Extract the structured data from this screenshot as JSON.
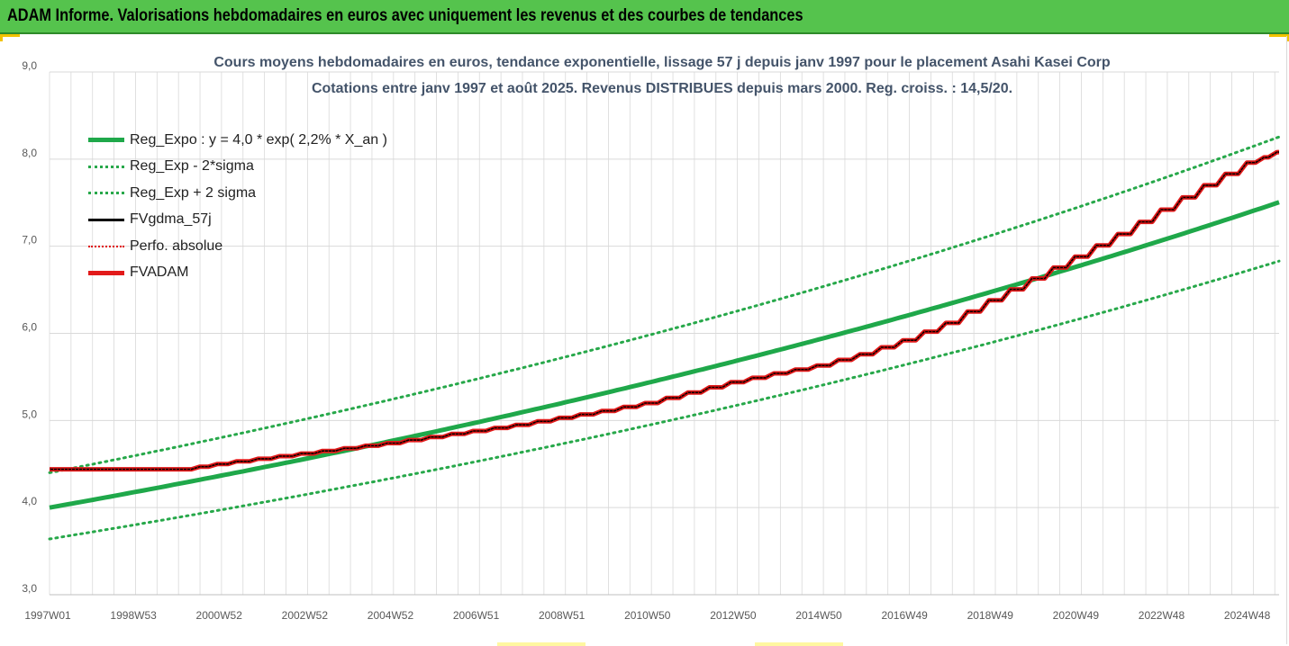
{
  "banner": {
    "title": "ADAM Informe. Valorisations hebdomadaires en euros avec uniquement les revenus et des courbes de tendances"
  },
  "colors": {
    "banner_bg": "#55c34d",
    "trend": "#1fa84a",
    "band": "#27a84a",
    "fvgdma": "#000000",
    "perfo": "#e00000",
    "fvadam": "#e21a1a",
    "grid": "#d9d9d9",
    "axis_text": "#595959",
    "title_text": "#44546a"
  },
  "chart_data": {
    "type": "line",
    "title": "Cours moyens hebdomadaires en euros, tendance exponentielle, lissage 57 j depuis janv 1997 pour le placement Asahi Kasei Corp",
    "subtitle": "Cotations entre janv 1997 et août 2025. Revenus DISTRIBUES depuis mars 2000. Reg. croiss. : 14,5/20.",
    "xlabel": "",
    "ylabel": "",
    "ylim": [
      3.0,
      9.0
    ],
    "yticks": [
      "3,0",
      "4,0",
      "5,0",
      "6,0",
      "7,0",
      "8,0",
      "9,0"
    ],
    "xticks": [
      "1997W01",
      "1998W53",
      "2000W52",
      "2002W52",
      "2004W52",
      "2006W51",
      "2008W51",
      "2010W50",
      "2012W50",
      "2014W50",
      "2016W49",
      "2018W49",
      "2020W49",
      "2022W48",
      "2024W48"
    ],
    "x_range_years": [
      1997.0,
      2025.6
    ],
    "grid": true,
    "legend_position": "top-left",
    "trend": {
      "name": "Reg_Expo : y = 4,0 * exp( 2,2% *  X_an )",
      "a": 4.0,
      "rate": 0.022,
      "lower_factor": 0.91,
      "upper_factor": 1.1
    },
    "series": [
      {
        "name": "Reg_Expo : y = 4,0 * exp( 2,2% *  X_an )",
        "style": "solid-thick-green",
        "x": [
          1997.0,
          2001.0,
          2005.0,
          2009.0,
          2013.0,
          2017.0,
          2021.0,
          2025.6
        ],
        "values": [
          4.0,
          4.37,
          4.76,
          5.2,
          5.67,
          6.19,
          6.75,
          7.49
        ]
      },
      {
        "name": "Reg_Exp - 2*sigma",
        "style": "dotted-green",
        "x": [
          1997.0,
          2001.0,
          2005.0,
          2009.0,
          2013.0,
          2017.0,
          2021.0,
          2025.6
        ],
        "values": [
          3.64,
          3.97,
          4.33,
          4.73,
          5.16,
          5.63,
          6.14,
          6.81
        ]
      },
      {
        "name": "Reg_Exp + 2 sigma",
        "style": "dotted-green",
        "x": [
          1997.0,
          2001.0,
          2005.0,
          2009.0,
          2013.0,
          2017.0,
          2021.0,
          2025.6
        ],
        "values": [
          4.4,
          4.8,
          5.24,
          5.72,
          6.24,
          6.81,
          7.43,
          8.24
        ]
      },
      {
        "name": "FVgdma_57j",
        "style": "solid-black",
        "x": [
          1997.0,
          2000.2,
          2001.0,
          2002.0,
          2003.0,
          2004.0,
          2005.0,
          2006.0,
          2007.0,
          2008.0,
          2009.0,
          2010.0,
          2011.0,
          2012.0,
          2013.0,
          2014.0,
          2015.0,
          2016.0,
          2017.0,
          2018.0,
          2019.0,
          2020.0,
          2021.0,
          2022.0,
          2023.0,
          2024.0,
          2025.0,
          2025.6
        ],
        "values": [
          4.44,
          4.44,
          4.5,
          4.56,
          4.62,
          4.68,
          4.74,
          4.81,
          4.88,
          4.95,
          5.03,
          5.11,
          5.2,
          5.32,
          5.44,
          5.54,
          5.63,
          5.76,
          5.92,
          6.12,
          6.38,
          6.63,
          6.88,
          7.14,
          7.42,
          7.7,
          7.96,
          8.08
        ]
      },
      {
        "name": "Perfo. absolue",
        "style": "dotted-red",
        "x": [
          1997.0,
          2000.2,
          2001.0,
          2002.0,
          2003.0,
          2004.0,
          2005.0,
          2006.0,
          2007.0,
          2008.0,
          2009.0,
          2010.0,
          2011.0,
          2012.0,
          2013.0,
          2014.0,
          2015.0,
          2016.0,
          2017.0,
          2018.0,
          2019.0,
          2020.0,
          2021.0,
          2022.0,
          2023.0,
          2024.0,
          2025.0,
          2025.6
        ],
        "values": [
          4.44,
          4.44,
          4.5,
          4.56,
          4.62,
          4.68,
          4.74,
          4.81,
          4.88,
          4.95,
          5.03,
          5.11,
          5.2,
          5.32,
          5.44,
          5.54,
          5.63,
          5.76,
          5.92,
          6.12,
          6.38,
          6.63,
          6.88,
          7.14,
          7.42,
          7.7,
          7.96,
          8.08
        ]
      },
      {
        "name": "FVADAM",
        "style": "solid-thick-red-stepped",
        "x": [
          1997.0,
          2000.2,
          2001.0,
          2002.0,
          2003.0,
          2004.0,
          2005.0,
          2006.0,
          2007.0,
          2008.0,
          2009.0,
          2010.0,
          2011.0,
          2012.0,
          2013.0,
          2014.0,
          2015.0,
          2016.0,
          2017.0,
          2018.0,
          2019.0,
          2020.0,
          2021.0,
          2022.0,
          2023.0,
          2024.0,
          2025.0,
          2025.6
        ],
        "values": [
          4.44,
          4.44,
          4.5,
          4.56,
          4.62,
          4.68,
          4.74,
          4.81,
          4.88,
          4.95,
          5.03,
          5.11,
          5.2,
          5.32,
          5.44,
          5.54,
          5.63,
          5.76,
          5.92,
          6.12,
          6.38,
          6.63,
          6.88,
          7.14,
          7.42,
          7.7,
          7.96,
          8.08
        ]
      }
    ]
  },
  "legend": {
    "items": [
      {
        "label": "Reg_Expo : y = 4,0 * exp( 2,2% *  X_an )"
      },
      {
        "label": "Reg_Exp - 2*sigma"
      },
      {
        "label": "Reg_Exp + 2 sigma"
      },
      {
        "label": "FVgdma_57j"
      },
      {
        "label": "Perfo. absolue"
      },
      {
        "label": "FVADAM"
      }
    ]
  }
}
